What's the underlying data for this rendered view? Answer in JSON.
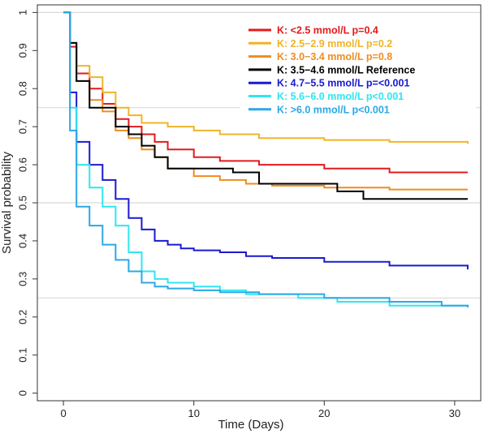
{
  "chart_data": {
    "type": "line",
    "xlabel": "Time (Days)",
    "ylabel": "Survival probability",
    "xlim": [
      -2,
      32
    ],
    "ylim": [
      -0.02,
      1.02
    ],
    "xticks": [
      0,
      10,
      20,
      30
    ],
    "yticks": [
      0,
      0.1,
      0.2,
      0.3,
      0.4,
      0.5,
      0.6,
      0.7,
      0.8,
      0.9,
      1
    ],
    "gridlines_y": [
      0.25,
      0.5,
      0.75,
      1
    ],
    "step": true,
    "legend_position": "top-right",
    "series": [
      {
        "name": "K: <2.5 mmol/L  p=0.4",
        "color": "#e31a1c",
        "x": [
          0,
          0.5,
          1,
          2,
          3,
          4,
          5,
          6,
          7,
          8,
          10,
          12,
          15,
          20,
          25,
          31
        ],
        "y": [
          1,
          0.91,
          0.84,
          0.8,
          0.76,
          0.72,
          0.7,
          0.68,
          0.66,
          0.64,
          0.62,
          0.61,
          0.6,
          0.59,
          0.58,
          0.58
        ]
      },
      {
        "name": "K: 2.5−2.9 mmol/L  p=0.2",
        "color": "#f0b429",
        "x": [
          0,
          0.5,
          1,
          2,
          3,
          4,
          5,
          6,
          8,
          10,
          12,
          15,
          20,
          25,
          31
        ],
        "y": [
          1,
          0.92,
          0.86,
          0.83,
          0.79,
          0.75,
          0.73,
          0.71,
          0.7,
          0.69,
          0.68,
          0.67,
          0.665,
          0.66,
          0.655
        ]
      },
      {
        "name": "K: 3.0−3.4 mmol/L  p=0.8",
        "color": "#f08c1e",
        "x": [
          0,
          0.5,
          1,
          2,
          3,
          4,
          5,
          6,
          7,
          8,
          10,
          12,
          14,
          16,
          20,
          25,
          31
        ],
        "y": [
          1,
          0.92,
          0.82,
          0.77,
          0.74,
          0.69,
          0.67,
          0.64,
          0.62,
          0.59,
          0.57,
          0.56,
          0.55,
          0.545,
          0.54,
          0.535,
          0.535
        ]
      },
      {
        "name": "K: 3.5−4.6 mmol/L Reference",
        "color": "#000000",
        "x": [
          0,
          0.5,
          1,
          2,
          3,
          4,
          5,
          6,
          7,
          8,
          10,
          13,
          15,
          18,
          21,
          23,
          31
        ],
        "y": [
          1,
          0.92,
          0.82,
          0.75,
          0.75,
          0.7,
          0.68,
          0.65,
          0.62,
          0.59,
          0.59,
          0.58,
          0.55,
          0.55,
          0.53,
          0.51,
          0.51
        ]
      },
      {
        "name": "K: 4.7−5.5 mmol/L  p=<0.001",
        "color": "#1a1ad0",
        "x": [
          0,
          0.5,
          1,
          2,
          3,
          4,
          5,
          6,
          7,
          8,
          9,
          10,
          12,
          14,
          16,
          20,
          25,
          31
        ],
        "y": [
          1,
          0.79,
          0.66,
          0.6,
          0.56,
          0.51,
          0.46,
          0.43,
          0.4,
          0.39,
          0.38,
          0.375,
          0.37,
          0.36,
          0.355,
          0.345,
          0.335,
          0.325
        ]
      },
      {
        "name": "K: 5.6−6.0 mmol/L  p<0.001",
        "color": "#2ee6f0",
        "x": [
          0,
          0.5,
          1,
          2,
          3,
          4,
          5,
          6,
          7,
          8,
          10,
          12,
          14,
          18,
          21,
          25,
          31
        ],
        "y": [
          1,
          0.75,
          0.6,
          0.54,
          0.49,
          0.44,
          0.37,
          0.32,
          0.3,
          0.29,
          0.28,
          0.27,
          0.26,
          0.25,
          0.24,
          0.23,
          0.225
        ]
      },
      {
        "name": "K: >6.0 mmol/L  p<0.001",
        "color": "#2aa8e6",
        "x": [
          0,
          0.5,
          1,
          2,
          3,
          4,
          5,
          6,
          7,
          8,
          10,
          12,
          15,
          20,
          25,
          29,
          31
        ],
        "y": [
          1,
          0.69,
          0.49,
          0.44,
          0.39,
          0.35,
          0.32,
          0.29,
          0.28,
          0.275,
          0.27,
          0.265,
          0.26,
          0.25,
          0.24,
          0.23,
          0.225
        ]
      }
    ]
  }
}
